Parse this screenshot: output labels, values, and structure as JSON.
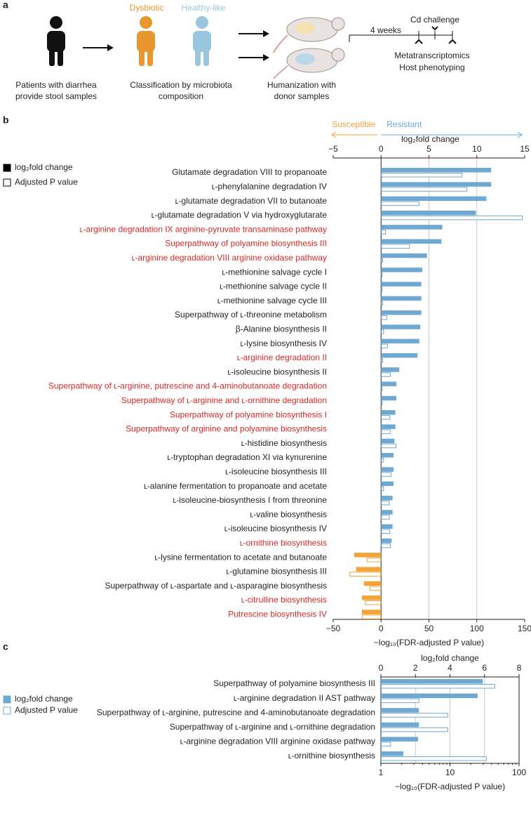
{
  "panel_a": {
    "panel_label": "a",
    "patients_label": [
      "Patients with diarrhea",
      "provide stool samples"
    ],
    "group_labels": [
      "Dysbiotic",
      "Healthy-like"
    ],
    "classification_label": [
      "Classification by microbiota",
      "composition"
    ],
    "humanization_label": [
      "Humanization with",
      "donor samples"
    ],
    "timeline": {
      "duration": "4 weeks",
      "challenge": "Cd challenge",
      "readouts": [
        "Metatranscriptomics",
        "Host phenotyping"
      ]
    }
  },
  "chart_data": [
    {
      "type": "bar",
      "panel_label": "b",
      "annotations": [
        "Susceptible",
        "Resistant"
      ],
      "categories": [
        "Glutamate degradation VIII to propanoate",
        "ʟ-phenylalanine degradation IV",
        "ʟ-glutamate degradation VII to butanoate",
        "ʟ-glutamate degradation V via hydroxyglutarate",
        "ʟ-arginine degradation IX arginine-pyruvate transaminase pathway",
        "Superpathway of polyamine biosynthesis III",
        "ʟ-arginine degradation VIII arginine oxidase pathway",
        "ʟ-methionine salvage cycle I",
        "ʟ-methionine salvage cycle II",
        "ʟ-methionine salvage cycle III",
        "Superpathway of ʟ-threonine metabolism",
        "β-Alanine biosynthesis II",
        "ʟ-lysine biosynthesis IV",
        "ʟ-arginine degradation II",
        "ʟ-isoleucine biosynthesis II",
        "Superpathway of ʟ-arginine, putrescine and 4-aminobutanoate degradation",
        "Superpathway of ʟ-arginine and ʟ-ornithine degradation",
        "Superpathway of polyamine biosynthesis I",
        "Superpathway of arginine and polyamine biosynthesis",
        "ʟ-histidine biosynthesis",
        "ʟ-tryptophan degradation XI via kynurenine",
        "ʟ-isoleucine biosynthesis III",
        "ʟ-alanine fermentation to propanoate and acetate",
        "ʟ-isoleucine-biosynthesis I from threonine",
        "ʟ-valine biosynthesis",
        "ʟ-isoleucine biosynthesis IV",
        "ʟ-ornithine biosynthesis",
        "ʟ-lysine fermentation to acetate and butanoate",
        "ʟ-glutamine biosynthesis III",
        "Superpathway of ʟ-aspartate and ʟ-asparagine biosynthesis",
        "ʟ-citrulline biosynthesis",
        "Putrescine biosynthesis IV"
      ],
      "category_colors": [
        "#231f20",
        "#231f20",
        "#231f20",
        "#231f20",
        "#d42a2a",
        "#d42a2a",
        "#d42a2a",
        "#231f20",
        "#231f20",
        "#231f20",
        "#231f20",
        "#231f20",
        "#231f20",
        "#d42a2a",
        "#231f20",
        "#d42a2a",
        "#d42a2a",
        "#d42a2a",
        "#d42a2a",
        "#231f20",
        "#231f20",
        "#231f20",
        "#231f20",
        "#231f20",
        "#231f20",
        "#231f20",
        "#d42a2a",
        "#231f20",
        "#231f20",
        "#231f20",
        "#d42a2a",
        "#d42a2a"
      ],
      "series": [
        {
          "name": "log₂fold change",
          "style": "filled",
          "color": "#6fa8d0",
          "negative_color": "#f2a33a",
          "legend_color": "#000000",
          "axis": "x",
          "values": [
            11.5,
            11.5,
            11,
            9.9,
            6.4,
            6.3,
            4.8,
            4.3,
            4.2,
            4.2,
            4.2,
            4.1,
            4.0,
            3.8,
            1.9,
            1.6,
            1.6,
            1.5,
            1.5,
            1.4,
            1.3,
            1.3,
            1.3,
            1.2,
            1.2,
            1.2,
            1.1,
            -2.8,
            -2.6,
            -1.8,
            -2,
            -2
          ]
        },
        {
          "name": "Adjusted P value",
          "style": "open",
          "color": "#6fa8d0",
          "negative_color": "#f2a33a",
          "legend_color": "#000000",
          "axis": "x2",
          "values": [
            85,
            90,
            40,
            148,
            5,
            30,
            2,
            1.5,
            1.5,
            2,
            6.5,
            3,
            7,
            2,
            10,
            1.5,
            1.5,
            9.5,
            10,
            16,
            3,
            11,
            3,
            9,
            9,
            9.5,
            10,
            -15,
            -33,
            -12,
            -17,
            -20
          ]
        }
      ],
      "xlabel": "log₂fold change",
      "xlim": [
        -5,
        15
      ],
      "xticks": [
        {
          "value": -5,
          "label": "−5"
        },
        0,
        5,
        10,
        15
      ],
      "x2label": "−log₁₀(FDR-adjusted P value)",
      "x2lim": [
        -50,
        150
      ],
      "x2ticks": [
        {
          "value": -50,
          "label": "−50"
        },
        0,
        50,
        100,
        150
      ],
      "grid": true,
      "zero_line": true,
      "frame": false,
      "x2scale": "linear"
    },
    {
      "type": "bar",
      "panel_label": "c",
      "categories": [
        "Superpathway of polyamine biosynthesis III",
        "ʟ-arginine degradation II AST pathway",
        "Superpathway of ʟ-arginine, putrescine and 4-aminobutanoate degradation",
        "Superpathway of ʟ-arginine and ʟ-ornithine degradation",
        "ʟ-arginine degradation VIII arginine oxidase pathway",
        "ʟ-ornithine biosynthesis"
      ],
      "category_colors": [
        "#231f20",
        "#231f20",
        "#231f20",
        "#231f20",
        "#231f20",
        "#231f20"
      ],
      "series": [
        {
          "name": "log₂fold change",
          "style": "filled",
          "color": "#6fa8d0",
          "negative_color": "#f2a33a",
          "legend_color": "#6fa8d0",
          "axis": "x",
          "values": [
            5.9,
            5.6,
            2.2,
            2.2,
            2.15,
            1.3
          ]
        },
        {
          "name": "Adjusted P value",
          "style": "open",
          "color": "#6fa8d0",
          "negative_color": "#f2a33a",
          "legend_color": "#6fa8d0",
          "axis": "x2",
          "values": [
            45,
            3.6,
            9.4,
            9.4,
            1.4,
            34
          ]
        }
      ],
      "xlabel": "log₂fold change",
      "xlim": [
        0,
        8
      ],
      "xticks": [
        0,
        2,
        4,
        6,
        8
      ],
      "x2label": "−log₁₀(FDR-adjusted P value)",
      "x2lim": [
        1,
        100
      ],
      "x2ticks": [
        1,
        10,
        100
      ],
      "grid": true,
      "zero_line": false,
      "frame": true,
      "x2scale": "log"
    }
  ]
}
